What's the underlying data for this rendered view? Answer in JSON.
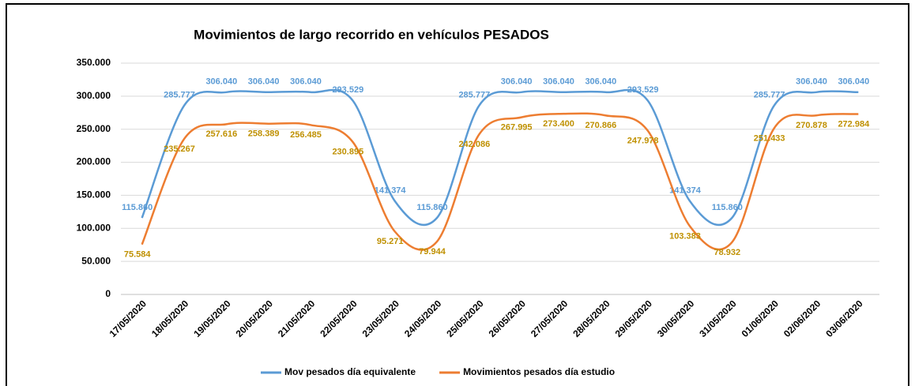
{
  "chart_data": {
    "type": "line",
    "title": "Movimientos de largo recorrido en vehículos PESADOS",
    "categories": [
      "17/05/2020",
      "18/05/2020",
      "19/05/2020",
      "20/05/2020",
      "21/05/2020",
      "22/05/2020",
      "23/05/2020",
      "24/05/2020",
      "25/05/2020",
      "26/05/2020",
      "27/05/2020",
      "28/05/2020",
      "29/05/2020",
      "30/05/2020",
      "31/05/2020",
      "01/06/2020",
      "02/06/2020",
      "03/06/2020"
    ],
    "series": [
      {
        "name": "Mov pesados día equivalente",
        "color": "#5b9bd5",
        "label_color": "#5b9bd5",
        "values": [
          115860,
          285777,
          306040,
          306040,
          306040,
          293529,
          141374,
          115860,
          285777,
          306040,
          306040,
          306040,
          293529,
          141374,
          115860,
          285777,
          306040,
          306040
        ],
        "value_labels": [
          "115.860",
          "285.777",
          "306.040",
          "306.040",
          "306.040",
          "293.529",
          "141.374",
          "115.860",
          "285.777",
          "306.040",
          "306.040",
          "306.040",
          "293.529",
          "141.374",
          "115.860",
          "285.777",
          "306.040",
          "306.040"
        ]
      },
      {
        "name": "Movimientos pesados día estudio",
        "color": "#ed7d31",
        "label_color": "#bf9000",
        "values": [
          75584,
          235267,
          257616,
          258389,
          256485,
          230895,
          95271,
          79944,
          242086,
          267995,
          273400,
          270866,
          247978,
          103383,
          78932,
          251433,
          270878,
          272984
        ],
        "value_labels": [
          "75.584",
          "235.267",
          "257.616",
          "258.389",
          "256.485",
          "230.895",
          "95.271",
          "79.944",
          "242.086",
          "267.995",
          "273.400",
          "270.866",
          "247.978",
          "103.383",
          "78.932",
          "251.433",
          "270.878",
          "272.984"
        ]
      }
    ],
    "ylim": [
      0,
      350000
    ],
    "yticks": [
      0,
      {
        "value": 50000,
        "label": "50.000"
      },
      {
        "value": 100000,
        "label": "100.000"
      },
      {
        "value": 150000,
        "label": "150.000"
      },
      {
        "value": 200000,
        "label": "200.000"
      },
      {
        "value": 250000,
        "label": "250.000"
      },
      {
        "value": 300000,
        "label": "300.000"
      },
      {
        "value": 350000,
        "label": "350.000"
      }
    ],
    "grid": true,
    "smooth": true,
    "legend": "bottom"
  }
}
